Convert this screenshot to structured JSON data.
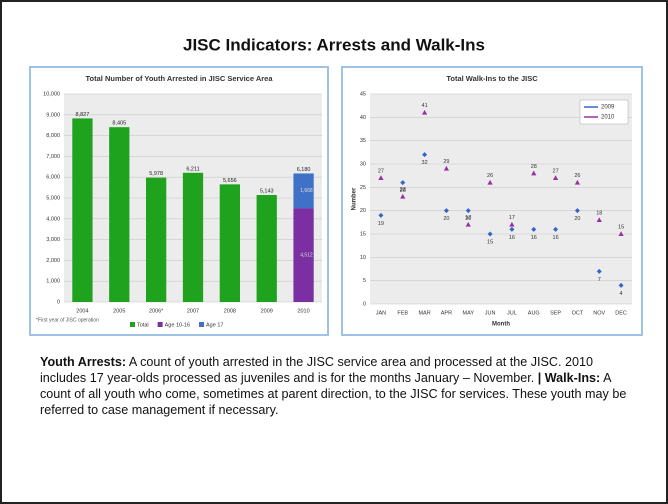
{
  "title": "JISC Indicators: Arrests and Walk-Ins",
  "chart_data": [
    {
      "type": "bar",
      "title": "Total Number of Youth Arrested in JISC Service Area",
      "categories": [
        "2004",
        "2005",
        "2006*",
        "2007",
        "2008",
        "2009",
        "2010"
      ],
      "stacked": true,
      "series": [
        {
          "name": "Total",
          "color": "#1fa31f",
          "values": [
            8827,
            8405,
            5978,
            6211,
            5656,
            5143,
            null
          ],
          "value_labels": [
            "8,827",
            "8,405",
            "5,978",
            "6,211",
            "5,656",
            "5,143",
            null
          ]
        },
        {
          "name": "Age 10-16",
          "color": "#7a2fa3",
          "values": [
            null,
            null,
            null,
            null,
            null,
            null,
            4512
          ],
          "value_labels": [
            null,
            null,
            null,
            null,
            null,
            null,
            "4,512"
          ]
        },
        {
          "name": "Age 17",
          "color": "#3f72c6",
          "values": [
            null,
            null,
            null,
            null,
            null,
            null,
            1668
          ],
          "value_labels": [
            null,
            null,
            null,
            null,
            null,
            null,
            "1,668"
          ]
        }
      ],
      "annotations": [
        {
          "text": "6,180",
          "value": 6180,
          "category": "2010"
        }
      ],
      "ylim": [
        0,
        10000
      ],
      "yticks": [
        0,
        {
          "value": 1000,
          "label": "1,000"
        },
        {
          "value": 2000,
          "label": "2,000"
        },
        {
          "value": 3000,
          "label": "3,000"
        },
        {
          "value": 4000,
          "label": "4,000"
        },
        {
          "value": 5000,
          "label": "5,000"
        },
        {
          "value": 6000,
          "label": "6,000"
        },
        {
          "value": 7000,
          "label": "7,000"
        },
        {
          "value": 8000,
          "label": "8,000"
        },
        {
          "value": 9000,
          "label": "9,000"
        },
        {
          "value": 10000,
          "label": "10,000"
        }
      ],
      "grid": true,
      "legend": "bottom",
      "footnote": "*First year of JISC operation"
    },
    {
      "type": "line",
      "title": "Total Walk-Ins to the JISC",
      "categories": [
        "JAN",
        "FEB",
        "MAR",
        "APR",
        "MAY",
        "JUN",
        "JUL",
        "AUG",
        "SEP",
        "OCT",
        "NOV",
        "DEC"
      ],
      "series": [
        {
          "name": "2009",
          "color": "#3465c8",
          "values": [
            19,
            26,
            32,
            20,
            20,
            15,
            16,
            16,
            16,
            20,
            7,
            4
          ]
        },
        {
          "name": "2010",
          "color": "#9a2f9e",
          "values": [
            27,
            23,
            41,
            29,
            17,
            26,
            17,
            28,
            27,
            26,
            18,
            15
          ]
        }
      ],
      "ylim": [
        0,
        45
      ],
      "yticks": [
        0,
        5,
        10,
        15,
        20,
        25,
        30,
        35,
        40,
        45
      ],
      "x_label": "Month",
      "y_label": "Number",
      "grid": true,
      "legend": "top-right"
    }
  ],
  "description": [
    {
      "text": "Youth Arrests:",
      "bold": true
    },
    {
      "text": " A count of youth arrested in the JISC service area and processed at the JISC.  2010 includes 17 year-olds processed as juveniles and is for the months January – November. ",
      "bold": false
    },
    {
      "text": "| Walk-Ins:",
      "bold": true
    },
    {
      "text": " A count of all youth who come, sometimes at parent direction, to the JISC for services.  These youth may be referred to case management if necessary.",
      "bold": false
    }
  ]
}
